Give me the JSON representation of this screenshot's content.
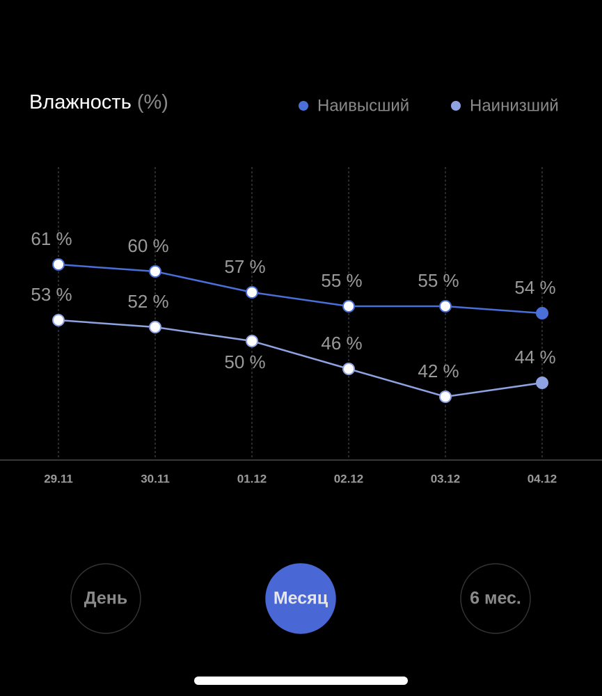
{
  "chart_data": {
    "type": "line",
    "title": "Влажность",
    "unit": "(%)",
    "categories": [
      "29.11",
      "30.11",
      "01.12",
      "02.12",
      "03.12",
      "04.12"
    ],
    "series": [
      {
        "name": "Наивысший",
        "color": "#4a6fd8",
        "values": [
          61,
          60,
          57,
          55,
          55,
          54
        ],
        "value_labels": [
          "61 %",
          "60 %",
          "57 %",
          "55 %",
          "55 %",
          "54 %"
        ]
      },
      {
        "name": "Наинизший",
        "color": "#8fa3e2",
        "values": [
          53,
          52,
          50,
          46,
          42,
          44
        ],
        "value_labels": [
          "53 %",
          "52 %",
          "50 %",
          "46 %",
          "42 %",
          "44 %"
        ]
      }
    ],
    "ylim": [
      33,
      75
    ]
  },
  "buttons": [
    {
      "label": "День"
    },
    {
      "label": "Месяц",
      "selected": true
    },
    {
      "label": "6 мес."
    }
  ]
}
